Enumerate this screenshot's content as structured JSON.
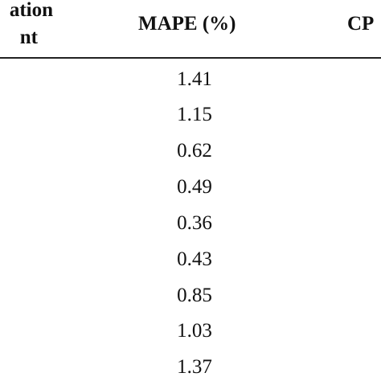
{
  "table": {
    "header": {
      "col1_line1": "ation",
      "col1_line2": "nt",
      "col2": "MAPE (%)",
      "col3": "CP"
    },
    "mape_values": [
      "1.41",
      "1.15",
      "0.62",
      "0.49",
      "0.36",
      "0.43",
      "0.85",
      "1.03",
      "1.37"
    ]
  }
}
